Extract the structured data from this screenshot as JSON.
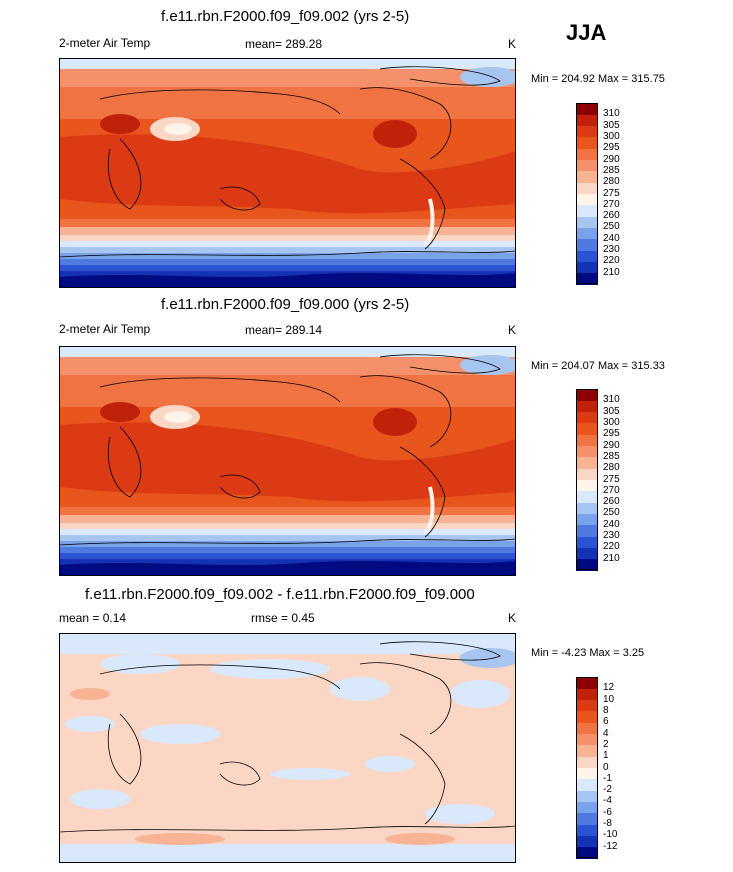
{
  "season": "JJA",
  "panels": [
    {
      "title": "f.e11.rbn.F2000.f09_f09.002 (yrs 2-5)",
      "left_label": "2-meter Air Temp",
      "center_label": "mean= 289.28",
      "unit": "K",
      "minmax": "Min = 204.92 Max = 315.75"
    },
    {
      "title": "f.e11.rbn.F2000.f09_f09.000 (yrs 2-5)",
      "left_label": "2-meter Air Temp",
      "center_label": "mean= 289.14",
      "unit": "K",
      "minmax": "Min = 204.07 Max = 315.33"
    },
    {
      "title": "f.e11.rbn.F2000.f09_f09.002 - f.e11.rbn.F2000.f09_f09.000",
      "left_label": "mean =   0.14",
      "center_label": "rmse =   0.45",
      "unit": "K",
      "minmax": "Min =  -4.23 Max =   3.25"
    }
  ],
  "chart_data": [
    {
      "type": "heatmap",
      "title": "f.e11.rbn.F2000.f09_f09.002 (yrs 2-5)",
      "variable": "2-meter Air Temp",
      "units": "K",
      "mean": 289.28,
      "min": 204.92,
      "max": 315.75,
      "colorbar_levels": [
        310,
        305,
        300,
        295,
        290,
        285,
        280,
        275,
        270,
        260,
        250,
        240,
        230,
        220,
        210
      ],
      "colorbar_colors": [
        "#8b0000",
        "#c0210a",
        "#dc3a14",
        "#e8561e",
        "#f07344",
        "#f5916a",
        "#f8b394",
        "#fbd6c4",
        "#fff3ea",
        "#d9e8fb",
        "#a7c5f1",
        "#7aa2e9",
        "#4f7be0",
        "#2b54d2",
        "#1432b4",
        "#000a80"
      ]
    },
    {
      "type": "heatmap",
      "title": "f.e11.rbn.F2000.f09_f09.000 (yrs 2-5)",
      "variable": "2-meter Air Temp",
      "units": "K",
      "mean": 289.14,
      "min": 204.07,
      "max": 315.33,
      "colorbar_levels": [
        310,
        305,
        300,
        295,
        290,
        285,
        280,
        275,
        270,
        260,
        250,
        240,
        230,
        220,
        210
      ],
      "colorbar_colors": [
        "#8b0000",
        "#c0210a",
        "#dc3a14",
        "#e8561e",
        "#f07344",
        "#f5916a",
        "#f8b394",
        "#fbd6c4",
        "#fff3ea",
        "#d9e8fb",
        "#a7c5f1",
        "#7aa2e9",
        "#4f7be0",
        "#2b54d2",
        "#1432b4",
        "#000a80"
      ]
    },
    {
      "type": "heatmap",
      "title": "f.e11.rbn.F2000.f09_f09.002 - f.e11.rbn.F2000.f09_f09.000",
      "units": "K",
      "mean": 0.14,
      "rmse": 0.45,
      "min": -4.23,
      "max": 3.25,
      "colorbar_levels": [
        12,
        10,
        8,
        6,
        4,
        2,
        1,
        0,
        -1,
        -2,
        -4,
        -6,
        -8,
        -10,
        -12
      ],
      "colorbar_colors": [
        "#8b0000",
        "#c0210a",
        "#dc3a14",
        "#e8561e",
        "#f07344",
        "#f5916a",
        "#f8b394",
        "#fbd6c4",
        "#fff3ea",
        "#d9e8fb",
        "#a7c5f1",
        "#7aa2e9",
        "#4f7be0",
        "#2b54d2",
        "#1432b4",
        "#000a80"
      ]
    }
  ]
}
